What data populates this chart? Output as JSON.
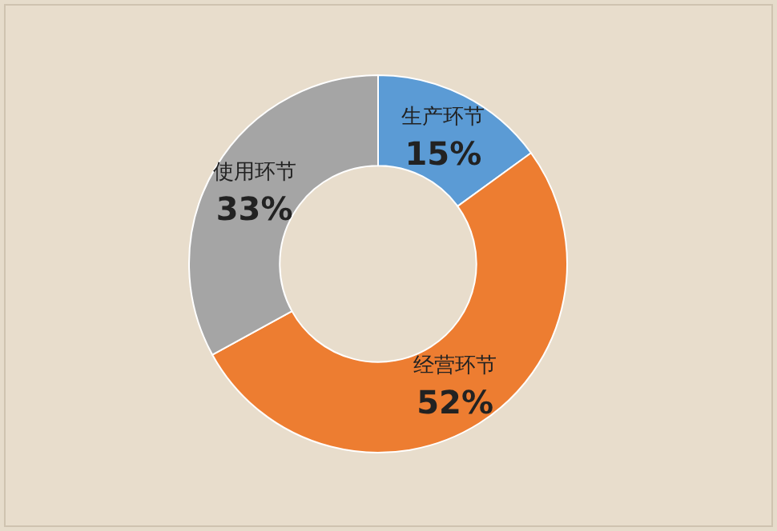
{
  "chart_data": {
    "type": "donut",
    "categories": [
      "生产环节",
      "经营环节",
      "使用环节"
    ],
    "values": [
      15,
      52,
      33
    ],
    "colors": [
      "#5b9bd5",
      "#ed7d31",
      "#a5a5a5"
    ],
    "value_labels": [
      "15%",
      "52%",
      "33%"
    ]
  }
}
